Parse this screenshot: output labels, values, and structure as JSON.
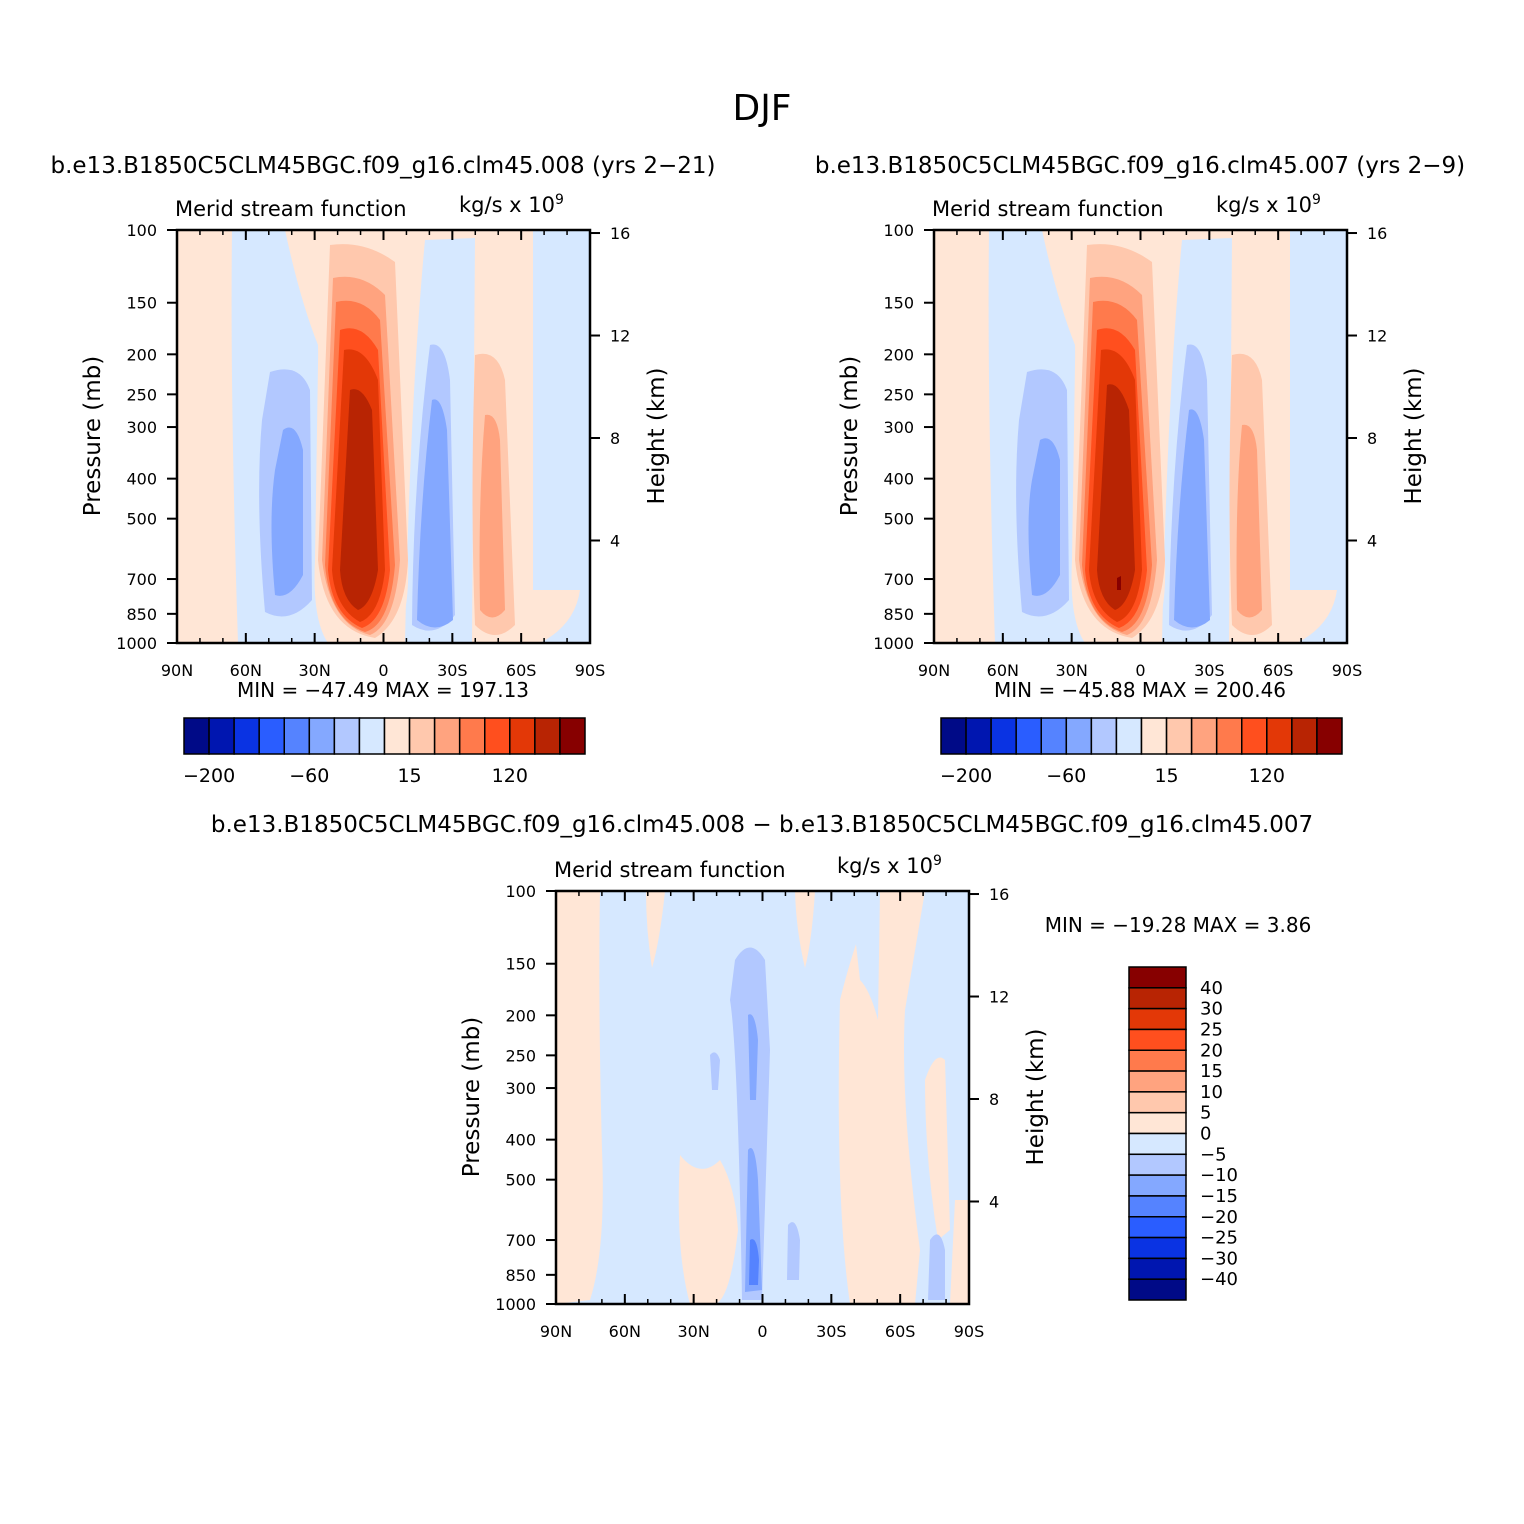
{
  "figure": {
    "title": "DJF"
  },
  "colors": {
    "levels_pos": [
      "#ffe6d6",
      "#ffc8ad",
      "#ffa37f",
      "#ff7a4c",
      "#ff4f1e",
      "#e33807",
      "#b82403",
      "#870000"
    ],
    "levels_neg": [
      "#d6e8ff",
      "#b2c8ff",
      "#84a8ff",
      "#5583ff",
      "#2a5dff",
      "#0a33e3",
      "#0016b0",
      "#000a87"
    ]
  },
  "chart_data": [
    {
      "type": "contour",
      "panel": "top-left",
      "case_title": "b.e13.B1850C5CLM45BGC.f09_g16.clm45.008 (yrs 2−21)",
      "variable": "Merid stream function",
      "units_text": "kg/s x 10",
      "units_exp": "9",
      "ylabel": "Pressure (mb)",
      "ylabel2": "Height (km)",
      "x_ticks": [
        "90N",
        "60N",
        "30N",
        "0",
        "30S",
        "60S",
        "90S"
      ],
      "y_ticks": [
        "100",
        "150",
        "200",
        "250",
        "300",
        "400",
        "500",
        "700",
        "850",
        "1000"
      ],
      "y_values": [
        100,
        150,
        200,
        250,
        300,
        400,
        500,
        700,
        850,
        1000
      ],
      "height_ticks": [
        "16",
        "12",
        "8",
        "4"
      ],
      "height_values": [
        16,
        12,
        8,
        4
      ],
      "stats": "MIN = −47.49   MAX = 197.13",
      "min": -47.49,
      "max": 197.13,
      "colorbar_labels": [
        "−200",
        "−60",
        "15",
        "120"
      ]
    },
    {
      "type": "contour",
      "panel": "top-right",
      "case_title": "b.e13.B1850C5CLM45BGC.f09_g16.clm45.007 (yrs 2−9)",
      "variable": "Merid stream function",
      "units_text": "kg/s x 10",
      "units_exp": "9",
      "ylabel": "Pressure (mb)",
      "ylabel2": "Height (km)",
      "x_ticks": [
        "90N",
        "60N",
        "30N",
        "0",
        "30S",
        "60S",
        "90S"
      ],
      "y_ticks": [
        "100",
        "150",
        "200",
        "250",
        "300",
        "400",
        "500",
        "700",
        "850",
        "1000"
      ],
      "y_values": [
        100,
        150,
        200,
        250,
        300,
        400,
        500,
        700,
        850,
        1000
      ],
      "height_ticks": [
        "16",
        "12",
        "8",
        "4"
      ],
      "height_values": [
        16,
        12,
        8,
        4
      ],
      "stats": "MIN = −45.88   MAX = 200.46",
      "min": -45.88,
      "max": 200.46,
      "colorbar_labels": [
        "−200",
        "−60",
        "15",
        "120"
      ]
    },
    {
      "type": "contour",
      "panel": "bottom-difference",
      "case_title": "b.e13.B1850C5CLM45BGC.f09_g16.clm45.008 − b.e13.B1850C5CLM45BGC.f09_g16.clm45.007",
      "variable": "Merid stream function",
      "units_text": "kg/s x 10",
      "units_exp": "9",
      "ylabel": "Pressure (mb)",
      "ylabel2": "Height (km)",
      "x_ticks": [
        "90N",
        "60N",
        "30N",
        "0",
        "30S",
        "60S",
        "90S"
      ],
      "y_ticks": [
        "100",
        "150",
        "200",
        "250",
        "300",
        "400",
        "500",
        "700",
        "850",
        "1000"
      ],
      "y_values": [
        100,
        150,
        200,
        250,
        300,
        400,
        500,
        700,
        850,
        1000
      ],
      "height_ticks": [
        "16",
        "12",
        "8",
        "4"
      ],
      "height_values": [
        16,
        12,
        8,
        4
      ],
      "stats": "MIN = −19.28   MAX =    3.86",
      "min": -19.28,
      "max": 3.86,
      "colorbar_labels": [
        "40",
        "30",
        "25",
        "20",
        "15",
        "10",
        "5",
        "0",
        "−5",
        "−10",
        "−15",
        "−20",
        "−25",
        "−30",
        "−40"
      ]
    }
  ]
}
